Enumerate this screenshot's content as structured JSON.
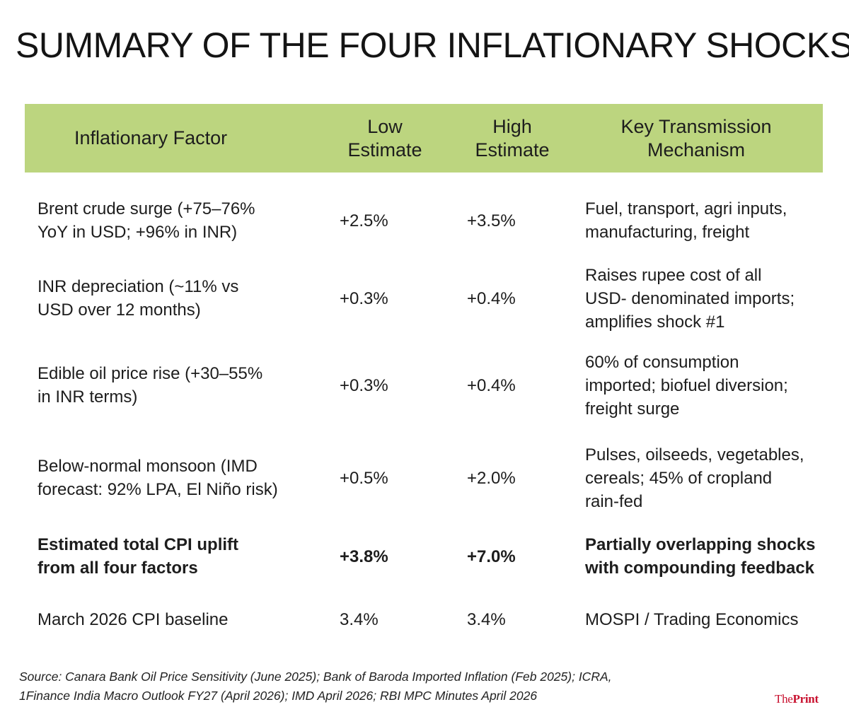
{
  "title": "SUMMARY OF THE FOUR INFLATIONARY SHOCKS",
  "table": {
    "headers": {
      "factor": "Inflationary Factor",
      "low_line1": "Low",
      "low_line2": "Estimate",
      "high_line1": "High",
      "high_line2": "Estimate",
      "mech_line1": "Key Transmission",
      "mech_line2": "Mechanism"
    },
    "rows": [
      {
        "factor": [
          "Brent crude surge (+75–76%",
          "YoY in USD; +96% in INR)"
        ],
        "low": "+2.5%",
        "high": "+3.5%",
        "mechanism": [
          "Fuel, transport, agri inputs,",
          "manufacturing, freight"
        ]
      },
      {
        "factor": [
          "INR depreciation (~11% vs",
          "USD over 12 months)"
        ],
        "low": "+0.3%",
        "high": "+0.4%",
        "mechanism": [
          "Raises rupee cost of all",
          "USD- denominated imports;",
          "amplifies shock #1"
        ]
      },
      {
        "factor": [
          "Edible oil price rise (+30–55%",
          "in INR terms)"
        ],
        "low": "+0.3%",
        "high": "+0.4%",
        "mechanism": [
          "60% of consumption",
          "imported; biofuel diversion;",
          "freight surge"
        ]
      },
      {
        "factor": [
          "Below-normal monsoon (IMD",
          "forecast: 92% LPA, El Niño risk)"
        ],
        "low": "+0.5%",
        "high": "+2.0%",
        "mechanism": [
          "Pulses, oilseeds, vegetables,",
          "cereals; 45% of cropland",
          "rain-fed"
        ]
      },
      {
        "factor": [
          "Estimated total CPI uplift",
          "from all four factors"
        ],
        "low": "+3.8%",
        "high": "+7.0%",
        "mechanism": [
          "Partially overlapping shocks",
          "with compounding feedback"
        ]
      },
      {
        "factor": [
          "March 2026 CPI baseline"
        ],
        "low": "3.4%",
        "high": "3.4%",
        "mechanism": [
          "MOSPI / Trading Economics"
        ]
      }
    ]
  },
  "source": {
    "line1": "Source: Canara Bank Oil Price Sensitivity (June 2025); Bank of Baroda Imported Inflation (Feb 2025); ICRA,",
    "line2": "1Finance India Macro Outlook FY27 (April 2026); IMD April 2026; RBI MPC Minutes April 2026"
  },
  "logo": {
    "prefix": "The",
    "main": "Print"
  },
  "colors": {
    "header_bg": "#bcd57f",
    "logo": "#c8102e"
  }
}
